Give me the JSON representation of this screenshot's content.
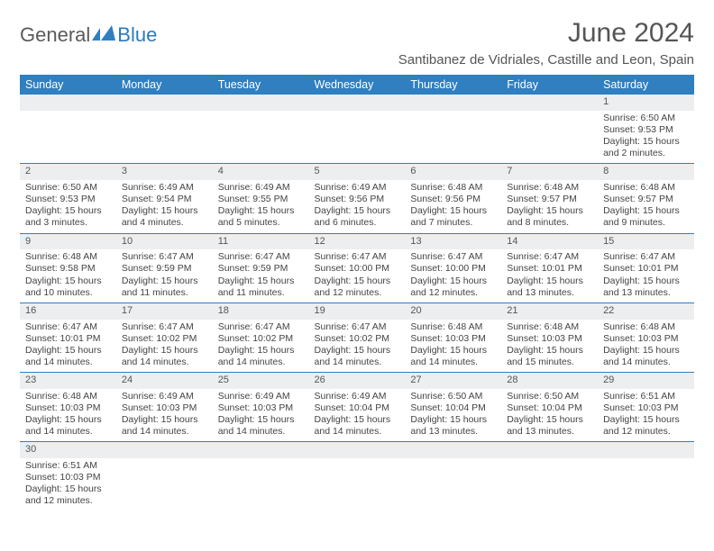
{
  "logo": {
    "text_general": "General",
    "text_blue": "Blue"
  },
  "title": "June 2024",
  "location": "Santibanez de Vidriales, Castille and Leon, Spain",
  "colors": {
    "header_bg": "#2f7fc1",
    "header_text": "#ffffff",
    "row_border": "#2f7fc1",
    "daynum_bg": "#eceef0",
    "text": "#444444",
    "title_text": "#555555"
  },
  "day_headers": [
    "Sunday",
    "Monday",
    "Tuesday",
    "Wednesday",
    "Thursday",
    "Friday",
    "Saturday"
  ],
  "weeks": [
    [
      {
        "blank": true
      },
      {
        "blank": true
      },
      {
        "blank": true
      },
      {
        "blank": true
      },
      {
        "blank": true
      },
      {
        "blank": true
      },
      {
        "num": "1",
        "sunrise": "Sunrise: 6:50 AM",
        "sunset": "Sunset: 9:53 PM",
        "daylight": "Daylight: 15 hours and 2 minutes."
      }
    ],
    [
      {
        "num": "2",
        "sunrise": "Sunrise: 6:50 AM",
        "sunset": "Sunset: 9:53 PM",
        "daylight": "Daylight: 15 hours and 3 minutes."
      },
      {
        "num": "3",
        "sunrise": "Sunrise: 6:49 AM",
        "sunset": "Sunset: 9:54 PM",
        "daylight": "Daylight: 15 hours and 4 minutes."
      },
      {
        "num": "4",
        "sunrise": "Sunrise: 6:49 AM",
        "sunset": "Sunset: 9:55 PM",
        "daylight": "Daylight: 15 hours and 5 minutes."
      },
      {
        "num": "5",
        "sunrise": "Sunrise: 6:49 AM",
        "sunset": "Sunset: 9:56 PM",
        "daylight": "Daylight: 15 hours and 6 minutes."
      },
      {
        "num": "6",
        "sunrise": "Sunrise: 6:48 AM",
        "sunset": "Sunset: 9:56 PM",
        "daylight": "Daylight: 15 hours and 7 minutes."
      },
      {
        "num": "7",
        "sunrise": "Sunrise: 6:48 AM",
        "sunset": "Sunset: 9:57 PM",
        "daylight": "Daylight: 15 hours and 8 minutes."
      },
      {
        "num": "8",
        "sunrise": "Sunrise: 6:48 AM",
        "sunset": "Sunset: 9:57 PM",
        "daylight": "Daylight: 15 hours and 9 minutes."
      }
    ],
    [
      {
        "num": "9",
        "sunrise": "Sunrise: 6:48 AM",
        "sunset": "Sunset: 9:58 PM",
        "daylight": "Daylight: 15 hours and 10 minutes."
      },
      {
        "num": "10",
        "sunrise": "Sunrise: 6:47 AM",
        "sunset": "Sunset: 9:59 PM",
        "daylight": "Daylight: 15 hours and 11 minutes."
      },
      {
        "num": "11",
        "sunrise": "Sunrise: 6:47 AM",
        "sunset": "Sunset: 9:59 PM",
        "daylight": "Daylight: 15 hours and 11 minutes."
      },
      {
        "num": "12",
        "sunrise": "Sunrise: 6:47 AM",
        "sunset": "Sunset: 10:00 PM",
        "daylight": "Daylight: 15 hours and 12 minutes."
      },
      {
        "num": "13",
        "sunrise": "Sunrise: 6:47 AM",
        "sunset": "Sunset: 10:00 PM",
        "daylight": "Daylight: 15 hours and 12 minutes."
      },
      {
        "num": "14",
        "sunrise": "Sunrise: 6:47 AM",
        "sunset": "Sunset: 10:01 PM",
        "daylight": "Daylight: 15 hours and 13 minutes."
      },
      {
        "num": "15",
        "sunrise": "Sunrise: 6:47 AM",
        "sunset": "Sunset: 10:01 PM",
        "daylight": "Daylight: 15 hours and 13 minutes."
      }
    ],
    [
      {
        "num": "16",
        "sunrise": "Sunrise: 6:47 AM",
        "sunset": "Sunset: 10:01 PM",
        "daylight": "Daylight: 15 hours and 14 minutes."
      },
      {
        "num": "17",
        "sunrise": "Sunrise: 6:47 AM",
        "sunset": "Sunset: 10:02 PM",
        "daylight": "Daylight: 15 hours and 14 minutes."
      },
      {
        "num": "18",
        "sunrise": "Sunrise: 6:47 AM",
        "sunset": "Sunset: 10:02 PM",
        "daylight": "Daylight: 15 hours and 14 minutes."
      },
      {
        "num": "19",
        "sunrise": "Sunrise: 6:47 AM",
        "sunset": "Sunset: 10:02 PM",
        "daylight": "Daylight: 15 hours and 14 minutes."
      },
      {
        "num": "20",
        "sunrise": "Sunrise: 6:48 AM",
        "sunset": "Sunset: 10:03 PM",
        "daylight": "Daylight: 15 hours and 14 minutes."
      },
      {
        "num": "21",
        "sunrise": "Sunrise: 6:48 AM",
        "sunset": "Sunset: 10:03 PM",
        "daylight": "Daylight: 15 hours and 15 minutes."
      },
      {
        "num": "22",
        "sunrise": "Sunrise: 6:48 AM",
        "sunset": "Sunset: 10:03 PM",
        "daylight": "Daylight: 15 hours and 14 minutes."
      }
    ],
    [
      {
        "num": "23",
        "sunrise": "Sunrise: 6:48 AM",
        "sunset": "Sunset: 10:03 PM",
        "daylight": "Daylight: 15 hours and 14 minutes."
      },
      {
        "num": "24",
        "sunrise": "Sunrise: 6:49 AM",
        "sunset": "Sunset: 10:03 PM",
        "daylight": "Daylight: 15 hours and 14 minutes."
      },
      {
        "num": "25",
        "sunrise": "Sunrise: 6:49 AM",
        "sunset": "Sunset: 10:03 PM",
        "daylight": "Daylight: 15 hours and 14 minutes."
      },
      {
        "num": "26",
        "sunrise": "Sunrise: 6:49 AM",
        "sunset": "Sunset: 10:04 PM",
        "daylight": "Daylight: 15 hours and 14 minutes."
      },
      {
        "num": "27",
        "sunrise": "Sunrise: 6:50 AM",
        "sunset": "Sunset: 10:04 PM",
        "daylight": "Daylight: 15 hours and 13 minutes."
      },
      {
        "num": "28",
        "sunrise": "Sunrise: 6:50 AM",
        "sunset": "Sunset: 10:04 PM",
        "daylight": "Daylight: 15 hours and 13 minutes."
      },
      {
        "num": "29",
        "sunrise": "Sunrise: 6:51 AM",
        "sunset": "Sunset: 10:03 PM",
        "daylight": "Daylight: 15 hours and 12 minutes."
      }
    ],
    [
      {
        "num": "30",
        "sunrise": "Sunrise: 6:51 AM",
        "sunset": "Sunset: 10:03 PM",
        "daylight": "Daylight: 15 hours and 12 minutes."
      },
      {
        "blank": true
      },
      {
        "blank": true
      },
      {
        "blank": true
      },
      {
        "blank": true
      },
      {
        "blank": true
      },
      {
        "blank": true
      }
    ]
  ]
}
